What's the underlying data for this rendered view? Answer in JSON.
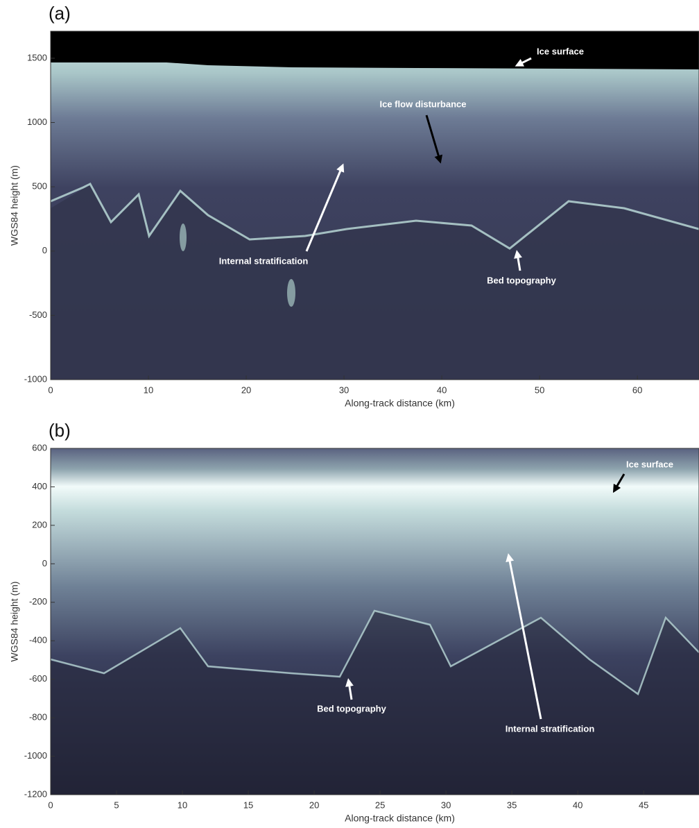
{
  "chart_data": [
    {
      "type": "radargram",
      "panel_label": "(a)",
      "x_label": "Along-track distance (km)",
      "y_label": "WGS84 height (m)",
      "xlim": [
        0,
        66.3
      ],
      "xticks": [
        0,
        10,
        20,
        30,
        40,
        50,
        60
      ],
      "ylim": [
        -1000,
        1710
      ],
      "yticks": [
        -1000,
        -500,
        0,
        500,
        1000,
        1500
      ],
      "annotations": [
        "Ice surface",
        "Ice flow disturbance",
        "Internal stratification",
        "Bed topography"
      ]
    },
    {
      "type": "radargram",
      "panel_label": "(b)",
      "x_label": "Along-track distance (km)",
      "y_label": "WGS84 height (m)",
      "xlim": [
        0,
        49.2
      ],
      "xticks": [
        0,
        5,
        10,
        15,
        20,
        25,
        30,
        35,
        40,
        45
      ],
      "ylim": [
        -1200,
        600
      ],
      "yticks": [
        -1200,
        -1000,
        -800,
        -600,
        -400,
        -200,
        0,
        200,
        400,
        600
      ],
      "annotations": [
        "Ice surface",
        "Bed topography",
        "Internal stratification"
      ]
    }
  ]
}
